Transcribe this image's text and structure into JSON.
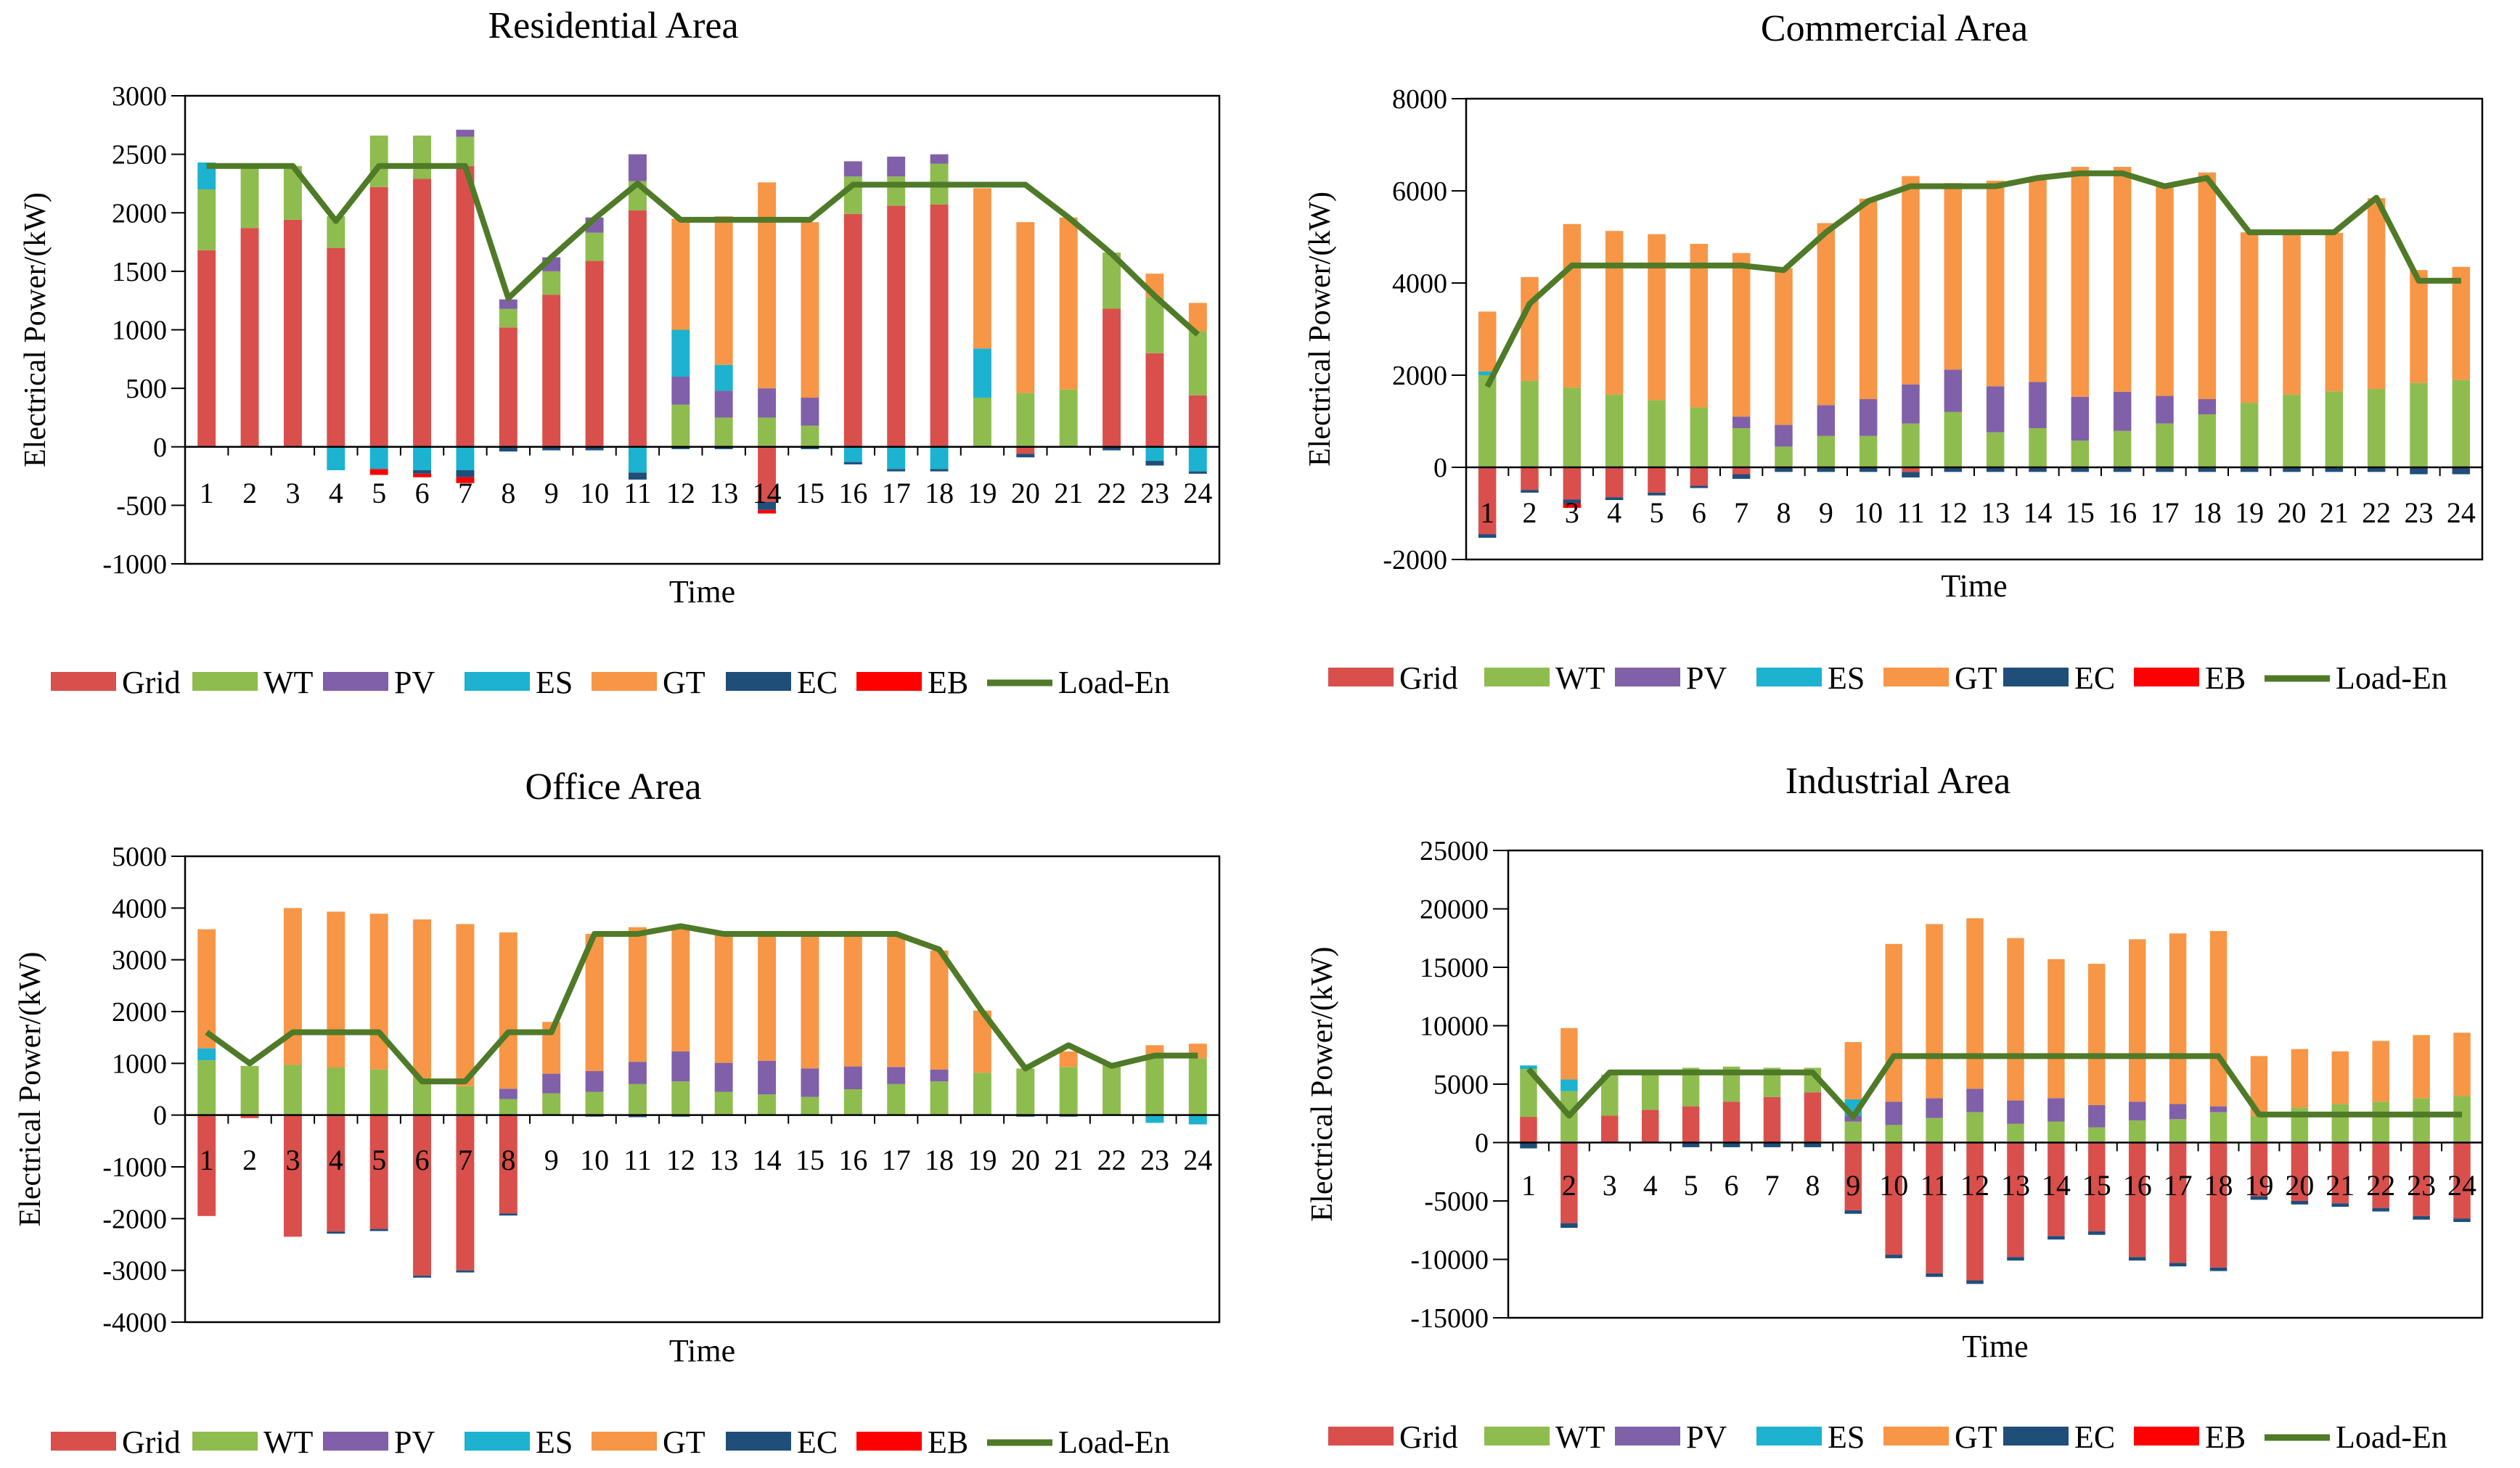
{
  "legend_labels": [
    "Grid",
    "WT",
    "PV",
    "ES",
    "GT",
    "EC",
    "EB",
    "Load-En"
  ],
  "colors": {
    "Grid": "#d94f4c",
    "WT": "#8fbc4f",
    "PV": "#8060a8",
    "ES": "#1cb2d0",
    "GT": "#f79646",
    "EC": "#1f4e79",
    "EB": "#ff0000",
    "Load-En": "#4f7a28"
  },
  "chart_data": [
    {
      "type": "bar",
      "title": "Residential Area",
      "xlabel": "Time",
      "ylabel": "Electrical Power/(kW)",
      "ylim": [
        -1000,
        3000
      ],
      "yticks": [
        3000,
        2500,
        2000,
        1500,
        1000,
        500,
        0,
        -500,
        -1000
      ],
      "categories": [
        "1",
        "2",
        "3",
        "4",
        "5",
        "6",
        "7",
        "8",
        "9",
        "10",
        "11",
        "12",
        "13",
        "14",
        "15",
        "16",
        "17",
        "18",
        "19",
        "20",
        "21",
        "22",
        "23",
        "24"
      ],
      "series": [
        {
          "name": "Grid",
          "values": [
            1680,
            1870,
            1940,
            1700,
            2220,
            2290,
            2400,
            1020,
            1300,
            1590,
            2020,
            0,
            0,
            -470,
            0,
            1990,
            2060,
            2070,
            0,
            -60,
            0,
            1180,
            800,
            440
          ]
        },
        {
          "name": "WT",
          "values": [
            520,
            530,
            460,
            270,
            440,
            370,
            250,
            160,
            200,
            240,
            250,
            360,
            250,
            250,
            180,
            320,
            250,
            350,
            420,
            460,
            490,
            480,
            480,
            550
          ]
        },
        {
          "name": "PV",
          "values": [
            0,
            0,
            0,
            0,
            0,
            0,
            60,
            80,
            120,
            130,
            230,
            240,
            230,
            250,
            240,
            130,
            170,
            80,
            0,
            0,
            0,
            0,
            0,
            0
          ]
        },
        {
          "name": "ES",
          "values": [
            230,
            0,
            0,
            -200,
            -190,
            -200,
            -200,
            0,
            0,
            0,
            -220,
            400,
            220,
            0,
            0,
            -130,
            -190,
            -190,
            420,
            0,
            0,
            0,
            -120,
            -210
          ]
        },
        {
          "name": "GT",
          "values": [
            0,
            0,
            0,
            0,
            0,
            0,
            0,
            0,
            0,
            0,
            0,
            950,
            1270,
            1760,
            1500,
            0,
            0,
            0,
            1370,
            1460,
            1470,
            0,
            200,
            240
          ]
        },
        {
          "name": "EC",
          "values": [
            0,
            0,
            0,
            0,
            0,
            -30,
            -60,
            -40,
            -30,
            -30,
            -60,
            -20,
            -20,
            -70,
            -20,
            -20,
            -20,
            -20,
            0,
            -30,
            0,
            -30,
            -40,
            -20
          ]
        },
        {
          "name": "EB",
          "values": [
            0,
            0,
            0,
            0,
            -50,
            -30,
            -50,
            0,
            0,
            0,
            0,
            0,
            0,
            -30,
            0,
            0,
            0,
            0,
            0,
            0,
            0,
            0,
            0,
            0
          ]
        },
        {
          "name": "Load-En",
          "type": "line",
          "values": [
            2400,
            2400,
            2400,
            1930,
            2400,
            2400,
            2400,
            1270,
            1620,
            1950,
            2250,
            1940,
            1940,
            1940,
            1940,
            2240,
            2240,
            2240,
            2240,
            2240,
            1960,
            1650,
            1290,
            960
          ]
        }
      ]
    },
    {
      "type": "bar",
      "title": "Commercial Area",
      "xlabel": "Time",
      "ylabel": "Electrical Power/(kW)",
      "ylim": [
        -2000,
        8000
      ],
      "yticks": [
        8000,
        6000,
        4000,
        2000,
        0,
        -2000
      ],
      "categories": [
        "1",
        "2",
        "3",
        "4",
        "5",
        "6",
        "7",
        "8",
        "9",
        "10",
        "11",
        "12",
        "13",
        "14",
        "15",
        "16",
        "17",
        "18",
        "19",
        "20",
        "21",
        "22",
        "23",
        "24"
      ],
      "series": [
        {
          "name": "Grid",
          "values": [
            -1450,
            -490,
            -700,
            -650,
            -550,
            -400,
            -150,
            0,
            0,
            0,
            -100,
            0,
            0,
            0,
            0,
            0,
            0,
            0,
            0,
            0,
            0,
            0,
            0,
            0
          ]
        },
        {
          "name": "WT",
          "values": [
            2000,
            1880,
            1730,
            1580,
            1460,
            1300,
            850,
            450,
            680,
            680,
            950,
            1200,
            760,
            850,
            580,
            790,
            950,
            1150,
            1400,
            1580,
            1650,
            1700,
            1830,
            1900
          ]
        },
        {
          "name": "PV",
          "values": [
            0,
            0,
            0,
            0,
            0,
            0,
            250,
            470,
            670,
            800,
            850,
            920,
            1000,
            1000,
            950,
            850,
            600,
            330,
            0,
            0,
            0,
            0,
            0,
            0
          ]
        },
        {
          "name": "ES",
          "values": [
            80,
            0,
            0,
            0,
            0,
            0,
            0,
            0,
            0,
            0,
            0,
            0,
            0,
            0,
            0,
            0,
            0,
            0,
            0,
            0,
            0,
            0,
            0,
            0
          ]
        },
        {
          "name": "GT",
          "values": [
            1300,
            2250,
            3550,
            3550,
            3600,
            3550,
            3550,
            3400,
            3950,
            4350,
            4520,
            4050,
            4460,
            4450,
            4990,
            4880,
            4570,
            4920,
            3700,
            3520,
            3440,
            4140,
            2450,
            2450
          ]
        },
        {
          "name": "EC",
          "values": [
            -80,
            -60,
            -80,
            -60,
            -60,
            -50,
            -100,
            -100,
            -100,
            -100,
            -120,
            -100,
            -100,
            -100,
            -100,
            -100,
            -100,
            -100,
            -100,
            -100,
            -100,
            -100,
            -150,
            -150
          ]
        },
        {
          "name": "EB",
          "values": [
            0,
            0,
            -100,
            0,
            0,
            0,
            0,
            0,
            0,
            0,
            0,
            0,
            0,
            0,
            0,
            0,
            0,
            0,
            0,
            0,
            0,
            0,
            0,
            0
          ]
        },
        {
          "name": "Load-En",
          "type": "line",
          "values": [
            1750,
            3550,
            4380,
            4380,
            4380,
            4380,
            4380,
            4280,
            5100,
            5780,
            6100,
            6100,
            6100,
            6280,
            6380,
            6380,
            6100,
            6280,
            5100,
            5100,
            5100,
            5850,
            4050,
            4050
          ]
        }
      ]
    },
    {
      "type": "bar",
      "title": "Office Area",
      "xlabel": "Time",
      "ylabel": "Electrical Power/(kW)",
      "ylim": [
        -4000,
        5000
      ],
      "yticks": [
        5000,
        4000,
        3000,
        2000,
        1000,
        0,
        -1000,
        -2000,
        -3000,
        -4000
      ],
      "categories": [
        "1",
        "2",
        "3",
        "4",
        "5",
        "6",
        "7",
        "8",
        "9",
        "10",
        "11",
        "12",
        "13",
        "14",
        "15",
        "16",
        "17",
        "18",
        "19",
        "20",
        "21",
        "22",
        "23",
        "24"
      ],
      "series": [
        {
          "name": "Grid",
          "values": [
            -1950,
            -60,
            -2350,
            -2250,
            -2200,
            -3100,
            -3000,
            -1900,
            0,
            0,
            0,
            0,
            0,
            0,
            0,
            0,
            0,
            0,
            0,
            0,
            0,
            0,
            0,
            0
          ]
        },
        {
          "name": "WT",
          "values": [
            1060,
            950,
            970,
            920,
            880,
            720,
            560,
            310,
            420,
            450,
            600,
            650,
            450,
            400,
            350,
            500,
            600,
            650,
            820,
            900,
            930,
            950,
            1100,
            1100
          ]
        },
        {
          "name": "PV",
          "values": [
            0,
            0,
            0,
            0,
            0,
            0,
            0,
            200,
            380,
            400,
            430,
            580,
            560,
            650,
            550,
            440,
            330,
            230,
            0,
            0,
            0,
            0,
            0,
            0
          ]
        },
        {
          "name": "ES",
          "values": [
            230,
            0,
            0,
            0,
            0,
            0,
            0,
            0,
            0,
            0,
            0,
            0,
            0,
            0,
            0,
            0,
            0,
            0,
            0,
            0,
            0,
            0,
            -150,
            -180
          ]
        },
        {
          "name": "GT",
          "values": [
            2300,
            0,
            3030,
            3010,
            3010,
            3060,
            3130,
            3020,
            1000,
            2650,
            2600,
            2430,
            2540,
            2440,
            2600,
            2550,
            2570,
            2300,
            1200,
            0,
            300,
            50,
            250,
            280
          ]
        },
        {
          "name": "EC",
          "values": [
            0,
            0,
            0,
            -40,
            -40,
            -40,
            -40,
            -40,
            0,
            -30,
            -40,
            -30,
            0,
            0,
            0,
            0,
            0,
            0,
            0,
            -30,
            -30,
            0,
            0,
            0
          ]
        },
        {
          "name": "EB",
          "values": [
            0,
            0,
            0,
            0,
            0,
            0,
            0,
            0,
            0,
            0,
            0,
            0,
            0,
            0,
            0,
            0,
            0,
            0,
            0,
            0,
            0,
            0,
            0,
            0
          ]
        },
        {
          "name": "Load-En",
          "type": "line",
          "values": [
            1600,
            1000,
            1600,
            1600,
            1600,
            650,
            650,
            1600,
            1600,
            3500,
            3500,
            3650,
            3500,
            3500,
            3500,
            3500,
            3500,
            3200,
            2000,
            900,
            1350,
            950,
            1150,
            1150
          ]
        }
      ]
    },
    {
      "type": "bar",
      "title": "Industrial Area",
      "xlabel": "Time",
      "ylabel": "Electrical Power/(kW)",
      "ylim": [
        -15000,
        25000
      ],
      "yticks": [
        25000,
        20000,
        15000,
        10000,
        5000,
        0,
        -5000,
        -10000,
        -15000
      ],
      "categories": [
        "1",
        "2",
        "3",
        "4",
        "5",
        "6",
        "7",
        "8",
        "9",
        "10",
        "11",
        "12",
        "13",
        "14",
        "15",
        "16",
        "17",
        "18",
        "19",
        "20",
        "21",
        "22",
        "23",
        "24"
      ],
      "series": [
        {
          "name": "Grid",
          "values": [
            2200,
            -6900,
            2300,
            2800,
            3100,
            3500,
            3900,
            4300,
            -5800,
            -9600,
            -11200,
            -11800,
            -9800,
            -8000,
            -7600,
            -9800,
            -10300,
            -10700,
            -4600,
            -5000,
            -5200,
            -5600,
            -6300,
            -6500
          ]
        },
        {
          "name": "WT",
          "values": [
            4100,
            4400,
            3500,
            3200,
            3300,
            3000,
            2500,
            2100,
            1800,
            1500,
            2100,
            2600,
            1600,
            1800,
            1300,
            1900,
            2000,
            2600,
            2300,
            3000,
            3300,
            3500,
            3800,
            4000
          ]
        },
        {
          "name": "PV",
          "values": [
            0,
            0,
            0,
            0,
            0,
            0,
            0,
            0,
            500,
            2000,
            1700,
            2000,
            2000,
            2000,
            1900,
            1600,
            1300,
            500,
            0,
            0,
            0,
            0,
            0,
            0
          ]
        },
        {
          "name": "ES",
          "values": [
            300,
            1000,
            0,
            0,
            0,
            0,
            0,
            0,
            1400,
            0,
            0,
            0,
            0,
            0,
            0,
            0,
            0,
            0,
            0,
            0,
            0,
            0,
            0,
            0
          ]
        },
        {
          "name": "GT",
          "values": [
            0,
            4400,
            0,
            0,
            0,
            0,
            0,
            0,
            4900,
            13500,
            14900,
            14600,
            13900,
            11900,
            12100,
            13900,
            14600,
            15000,
            5100,
            5000,
            4500,
            5200,
            5400,
            5400
          ]
        },
        {
          "name": "EC",
          "values": [
            -500,
            -400,
            0,
            0,
            -400,
            -400,
            -400,
            -400,
            -300,
            -300,
            -300,
            -300,
            -300,
            -300,
            -300,
            -300,
            -300,
            -300,
            -300,
            -300,
            -300,
            -300,
            -300,
            -300
          ]
        },
        {
          "name": "EB",
          "values": [
            0,
            0,
            0,
            0,
            0,
            0,
            0,
            0,
            0,
            0,
            0,
            0,
            0,
            0,
            0,
            0,
            0,
            0,
            0,
            0,
            0,
            0,
            0,
            0
          ]
        },
        {
          "name": "Load-En",
          "type": "line",
          "values": [
            6300,
            2300,
            6000,
            6000,
            6000,
            6000,
            6000,
            6000,
            2200,
            7400,
            7400,
            7400,
            7400,
            7400,
            7400,
            7400,
            7400,
            7400,
            2400,
            2400,
            2400,
            2400,
            2400,
            2400
          ]
        }
      ]
    }
  ]
}
